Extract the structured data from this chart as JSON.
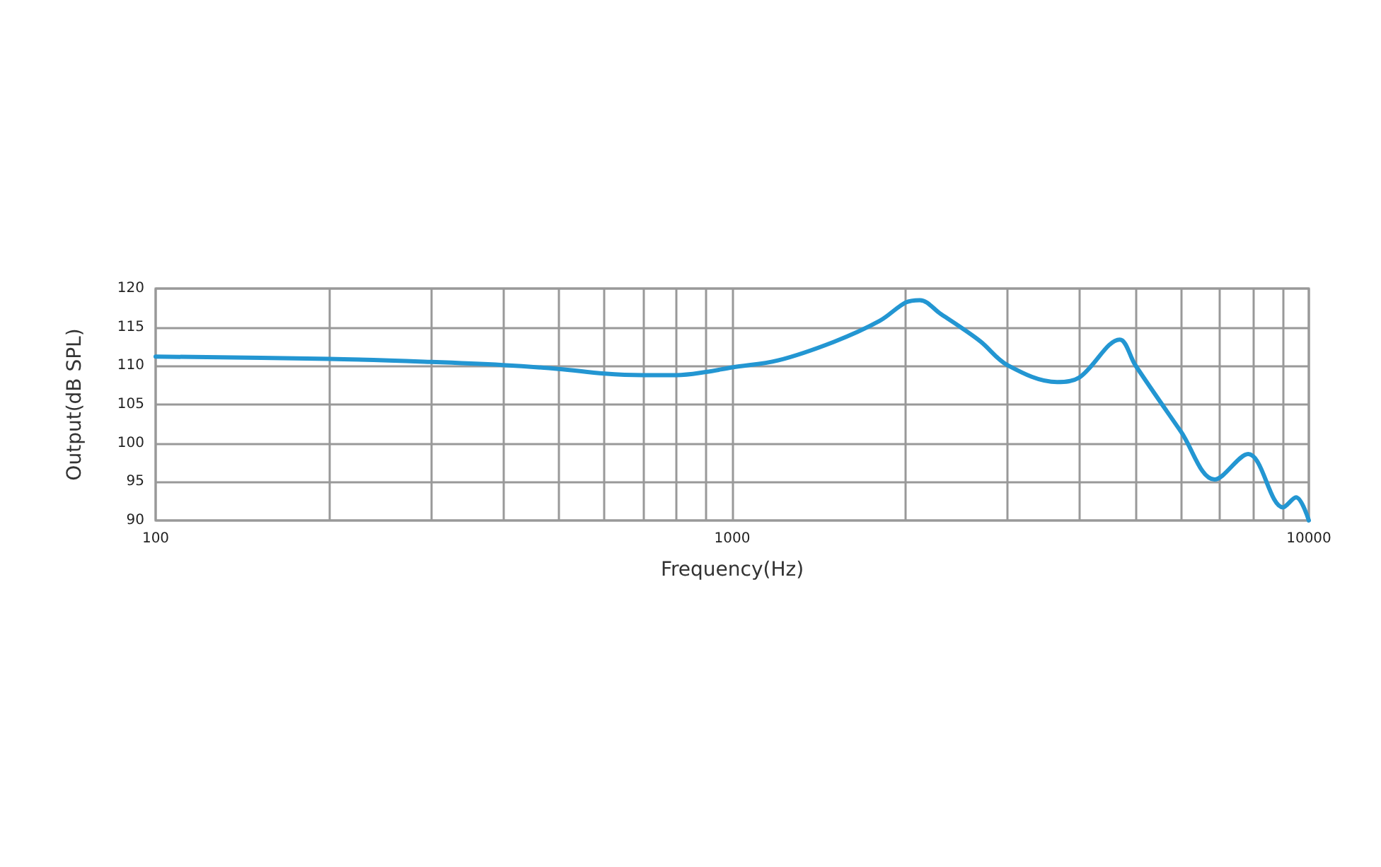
{
  "chart_data": {
    "type": "line",
    "xlabel": "Frequency(Hz)",
    "ylabel": "Output(dB SPL)",
    "log": "x",
    "grid": true,
    "marker": "none",
    "line_style": "solid",
    "x": [
      100,
      200,
      300,
      400,
      500,
      600,
      700,
      800,
      900,
      1000,
      1200,
      1500,
      1800,
      2000,
      2115,
      2300,
      2500,
      2700,
      3000,
      3660,
      4000,
      4700,
      5000,
      6000,
      6860,
      7850,
      9020,
      9500,
      10000
    ],
    "series": [
      {
        "color": "#2396d2",
        "values": [
          111.2,
          110.9,
          110.5,
          110.1,
          109.6,
          109.0,
          108.8,
          108.8,
          109.2,
          109.8,
          110.7,
          113.1,
          115.8,
          118.2,
          118.5,
          116.7,
          114.9,
          113.1,
          110.1,
          107.9,
          108.5,
          113.4,
          110.1,
          101.5,
          95.3,
          98.6,
          91.7,
          93,
          90
        ]
      }
    ],
    "xlim": [
      100,
      10000
    ],
    "xticks": [
      100,
      {
        "value": 200,
        "label": null
      },
      {
        "value": 300,
        "label": null
      },
      {
        "value": 400,
        "label": null
      },
      {
        "value": 500,
        "label": null
      },
      {
        "value": 600,
        "label": null
      },
      {
        "value": 700,
        "label": null
      },
      {
        "value": 800,
        "label": null
      },
      {
        "value": 900,
        "label": null
      },
      1000,
      {
        "value": 2000,
        "label": null
      },
      {
        "value": 3000,
        "label": null
      },
      {
        "value": 4000,
        "label": null
      },
      {
        "value": 5000,
        "label": null
      },
      {
        "value": 6000,
        "label": null
      },
      {
        "value": 7000,
        "label": null
      },
      {
        "value": 8000,
        "label": null
      },
      {
        "value": 9000,
        "label": null
      },
      10000
    ],
    "ylim": [
      90,
      120
    ],
    "yticks": [
      90,
      95,
      100,
      105,
      110,
      115,
      120
    ]
  }
}
